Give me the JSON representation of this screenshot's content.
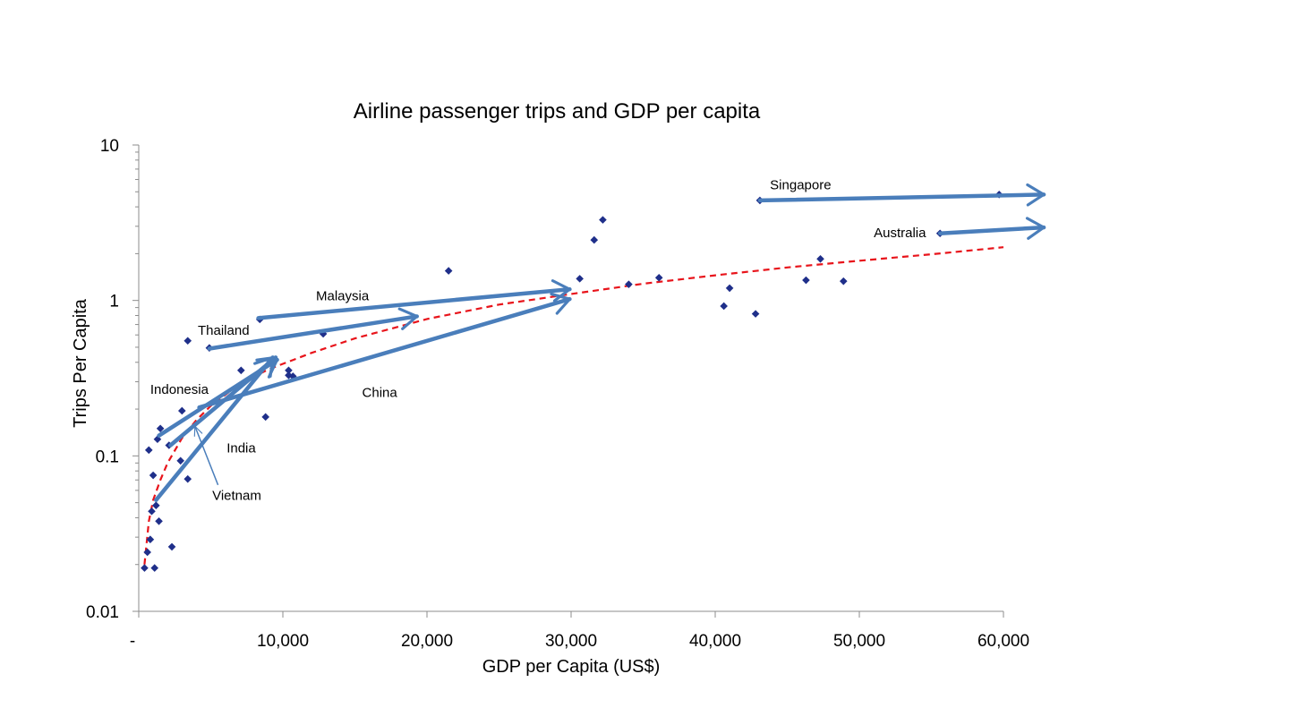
{
  "chart_data": {
    "type": "scatter",
    "title": "Airline passenger trips and GDP per capita",
    "xlabel": "GDP per Capita (US$)",
    "ylabel": "Trips Per Capita",
    "x_scale": "linear",
    "y_scale": "log",
    "xlim": [
      0,
      60000
    ],
    "ylim": [
      0.01,
      10
    ],
    "x_ticks": [
      0,
      10000,
      20000,
      30000,
      40000,
      50000,
      60000
    ],
    "x_tick_labels": [
      "-",
      "10,000",
      "20,000",
      "30,000",
      "40,000",
      "50,000",
      "60,000"
    ],
    "y_ticks": [
      0.01,
      0.1,
      1,
      10
    ],
    "y_tick_labels": [
      "0.01",
      "0.1",
      "1",
      "10"
    ],
    "grid": false,
    "marker_color": "#1f2f8a",
    "trend_color": "#e8141b",
    "arrow_color": "#4a7ebb",
    "series": [
      {
        "points": [
          [
            400,
            0.019
          ],
          [
            600,
            0.024
          ],
          [
            700,
            0.109
          ],
          [
            800,
            0.029
          ],
          [
            900,
            0.044
          ],
          [
            1000,
            0.075
          ],
          [
            1100,
            0.019
          ],
          [
            1200,
            0.048
          ],
          [
            1300,
            0.128
          ],
          [
            1400,
            0.038
          ],
          [
            1500,
            0.15
          ],
          [
            2100,
            0.117
          ],
          [
            2300,
            0.026
          ],
          [
            2900,
            0.093
          ],
          [
            3000,
            0.195
          ],
          [
            3400,
            0.071
          ],
          [
            3400,
            0.55
          ],
          [
            4900,
            0.495
          ],
          [
            7100,
            0.355
          ],
          [
            8400,
            0.755
          ],
          [
            8800,
            0.178
          ],
          [
            10400,
            0.355
          ],
          [
            10400,
            0.33
          ],
          [
            10700,
            0.325
          ],
          [
            12800,
            0.61
          ],
          [
            21500,
            1.55
          ],
          [
            30600,
            1.38
          ],
          [
            31600,
            2.45
          ],
          [
            32200,
            3.3
          ],
          [
            34000,
            1.27
          ],
          [
            36100,
            1.4
          ],
          [
            40600,
            0.92
          ],
          [
            41000,
            1.2
          ],
          [
            42800,
            0.82
          ],
          [
            43100,
            4.4
          ],
          [
            46300,
            1.35
          ],
          [
            47300,
            1.85
          ],
          [
            48900,
            1.33
          ],
          [
            55600,
            2.7
          ],
          [
            59700,
            4.8
          ]
        ]
      }
    ],
    "trendline": [
      [
        400,
        0.02
      ],
      [
        700,
        0.038
      ],
      [
        1000,
        0.052
      ],
      [
        1500,
        0.07
      ],
      [
        2000,
        0.09
      ],
      [
        3000,
        0.13
      ],
      [
        4000,
        0.17
      ],
      [
        5000,
        0.21
      ],
      [
        7000,
        0.29
      ],
      [
        9000,
        0.36
      ],
      [
        12000,
        0.46
      ],
      [
        15000,
        0.57
      ],
      [
        20000,
        0.76
      ],
      [
        25000,
        0.94
      ],
      [
        30000,
        1.1
      ],
      [
        35000,
        1.28
      ],
      [
        40000,
        1.45
      ],
      [
        45000,
        1.63
      ],
      [
        50000,
        1.8
      ],
      [
        55000,
        1.98
      ],
      [
        60000,
        2.2
      ]
    ],
    "annotations": [
      {
        "label": "Singapore",
        "label_x": 43800,
        "label_y": 5.2,
        "from": [
          43100,
          4.4
        ],
        "to": [
          62800,
          4.8
        ]
      },
      {
        "label": "Australia",
        "label_x": 51000,
        "label_y": 2.55,
        "from": [
          55600,
          2.7
        ],
        "to": [
          62800,
          2.95
        ]
      },
      {
        "label": "Malaysia",
        "label_x": 12300,
        "label_y": 1.0,
        "from": [
          8300,
          0.77
        ],
        "to": [
          29900,
          1.18
        ]
      },
      {
        "label": "Thailand",
        "label_x": 4100,
        "label_y": 0.6,
        "from": [
          4900,
          0.49
        ],
        "to": [
          19300,
          0.79
        ]
      },
      {
        "label": "China",
        "label_x": 15500,
        "label_y": 0.24,
        "from": [
          4200,
          0.205
        ],
        "to": [
          29900,
          1.02
        ]
      },
      {
        "label": "Indonesia",
        "label_x": 800,
        "label_y": 0.25,
        "from": [
          1400,
          0.135
        ],
        "to": [
          9600,
          0.415
        ]
      },
      {
        "label": "India",
        "label_x": 6100,
        "label_y": 0.105,
        "from": [
          2200,
          0.117
        ],
        "to": [
          9500,
          0.43
        ]
      },
      {
        "label": "Vietnam",
        "label_x": 5100,
        "label_y": 0.052,
        "from": [
          1200,
          0.052
        ],
        "to": [
          9300,
          0.43
        ]
      }
    ],
    "thin_arrow": {
      "from": [
        5500,
        0.065
      ],
      "to": [
        3900,
        0.155
      ]
    }
  }
}
